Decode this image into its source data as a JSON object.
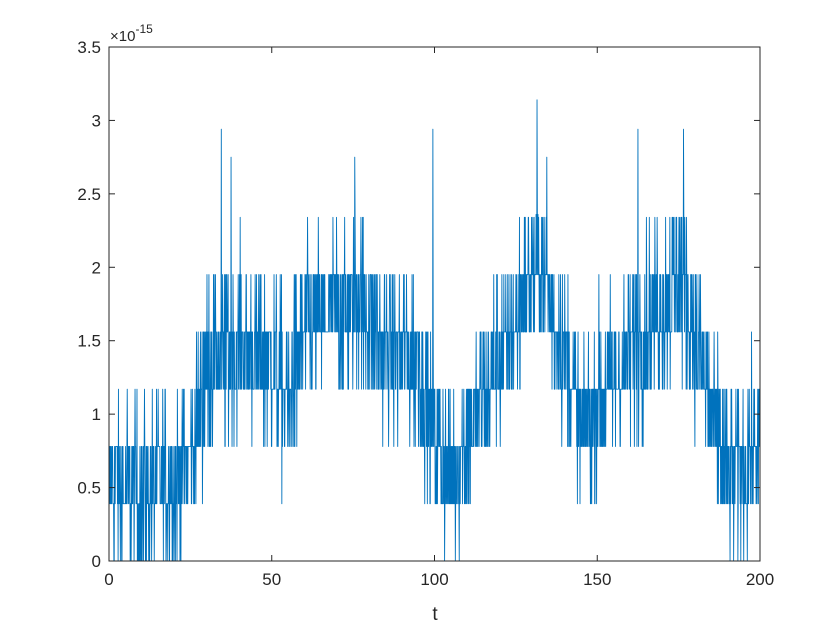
{
  "chart_data": {
    "type": "line",
    "title": "",
    "xlabel": "t",
    "ylabel": "",
    "xlim": [
      0,
      200
    ],
    "ylim": [
      0,
      3.5
    ],
    "y_exponent_label": "×10",
    "y_exponent_power": "-15",
    "x_ticks": [
      0,
      50,
      100,
      150,
      200
    ],
    "x_tick_labels": [
      "0",
      "50",
      "100",
      "150",
      "200"
    ],
    "y_ticks": [
      0,
      0.5,
      1,
      1.5,
      2,
      2.5,
      3,
      3.5
    ],
    "y_tick_labels": [
      "0",
      "0.5",
      "1",
      "1.5",
      "2",
      "2.5",
      "3",
      "3.5"
    ],
    "grid": false,
    "line_color": "#0072BD",
    "quantization_step": 0.39,
    "trend": {
      "x": [
        0,
        10,
        20,
        25,
        30,
        40,
        50,
        55,
        60,
        70,
        77,
        85,
        95,
        100,
        105,
        115,
        125,
        132,
        140,
        145,
        150,
        160,
        170,
        176,
        185,
        190,
        200
      ],
      "y": [
        0.55,
        0.45,
        0.55,
        0.7,
        1.35,
        1.45,
        1.35,
        1.05,
        1.55,
        1.7,
        1.75,
        1.45,
        1.4,
        0.8,
        0.6,
        1.1,
        1.65,
        2.05,
        1.45,
        0.85,
        1.05,
        1.45,
        1.75,
        1.95,
        1.05,
        0.55,
        0.75
      ]
    },
    "spikes": [
      {
        "x": 34.5,
        "y": 2.94
      },
      {
        "x": 37.5,
        "y": 2.75
      },
      {
        "x": 75.5,
        "y": 2.75
      },
      {
        "x": 99.5,
        "y": 2.94
      },
      {
        "x": 131.5,
        "y": 3.14
      },
      {
        "x": 134.5,
        "y": 2.75
      },
      {
        "x": 162.5,
        "y": 2.94
      },
      {
        "x": 176.5,
        "y": 2.94
      }
    ],
    "series": [
      {
        "values": []
      }
    ]
  }
}
